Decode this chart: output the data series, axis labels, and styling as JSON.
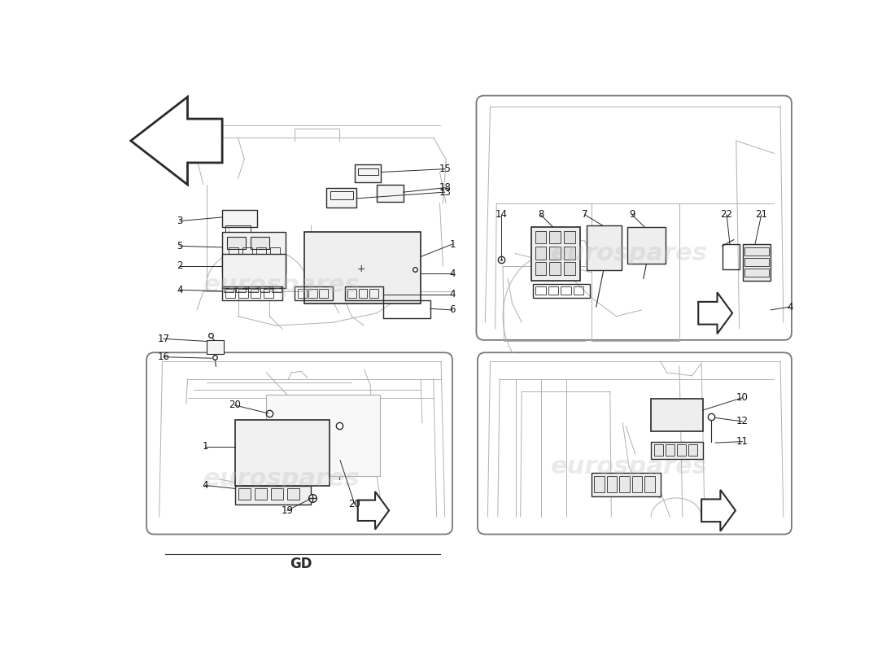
{
  "background_color": "#ffffff",
  "watermark_text": "eurospares",
  "watermark_color": "#bbbbbb",
  "watermark_alpha": 0.3,
  "line_color": "#2a2a2a",
  "sketch_color": "#888888",
  "light_line": "#b0b0b0",
  "line_width": 1.0,
  "label_fontsize": 8.5,
  "title_text": "GD",
  "title_fontsize": 12,
  "panel_border_color": "#777777",
  "panel_bg": "#ffffff"
}
